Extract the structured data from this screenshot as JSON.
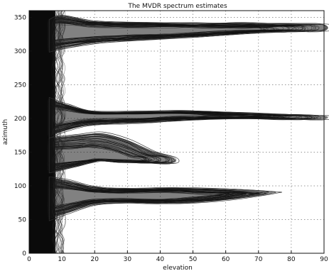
{
  "chart_data": {
    "type": "contour",
    "title": "The MVDR spectrum estimates",
    "xlabel": "elevation",
    "ylabel": "azimuth",
    "xlim": [
      0,
      90
    ],
    "ylim": [
      0,
      360
    ],
    "x_ticks": [
      0,
      10,
      20,
      30,
      40,
      50,
      60,
      70,
      80,
      90
    ],
    "y_ticks": [
      0,
      50,
      100,
      150,
      200,
      250,
      300,
      350
    ],
    "grid": true,
    "grid_style": "dotted",
    "dense_band": {
      "x_range": [
        0,
        8
      ],
      "y_range": [
        0,
        360
      ],
      "color": "#0a0a0a"
    },
    "lobes": [
      {
        "name": "lobe-330",
        "center_azimuth": 330,
        "tip_elevation": 90,
        "upper": [
          [
            6,
            346
          ],
          [
            10,
            352
          ],
          [
            20,
            344
          ],
          [
            35,
            342
          ],
          [
            50,
            341
          ],
          [
            65,
            341
          ],
          [
            80,
            340
          ],
          [
            90,
            339
          ]
        ],
        "lower": [
          [
            90,
            330
          ],
          [
            80,
            330
          ],
          [
            65,
            326
          ],
          [
            50,
            321
          ],
          [
            35,
            317
          ],
          [
            22,
            313
          ],
          [
            12,
            306
          ],
          [
            6,
            300
          ]
        ]
      },
      {
        "name": "lobe-205",
        "center_azimuth": 205,
        "tip_elevation": 90,
        "upper": [
          [
            6,
            230
          ],
          [
            12,
            220
          ],
          [
            20,
            210
          ],
          [
            35,
            210
          ],
          [
            50,
            211
          ],
          [
            65,
            208
          ],
          [
            80,
            205
          ],
          [
            90,
            204
          ]
        ],
        "lower": [
          [
            90,
            199
          ],
          [
            80,
            199
          ],
          [
            65,
            200
          ],
          [
            50,
            198
          ],
          [
            38,
            195
          ],
          [
            28,
            193
          ],
          [
            18,
            190
          ],
          [
            10,
            180
          ],
          [
            6,
            172
          ]
        ]
      },
      {
        "name": "lobe-140",
        "center_azimuth": 140,
        "tip_elevation": 44,
        "upper": [
          [
            6,
            170
          ],
          [
            15,
            175
          ],
          [
            22,
            178
          ],
          [
            30,
            168
          ],
          [
            38,
            150
          ],
          [
            44,
            142
          ]
        ],
        "lower": [
          [
            44,
            134
          ],
          [
            36,
            134
          ],
          [
            28,
            136
          ],
          [
            22,
            138
          ],
          [
            15,
            130
          ],
          [
            6,
            120
          ]
        ]
      },
      {
        "name": "lobe-85",
        "center_azimuth": 85,
        "tip_elevation": 74,
        "upper": [
          [
            6,
            112
          ],
          [
            12,
            108
          ],
          [
            20,
            98
          ],
          [
            30,
            96
          ],
          [
            45,
            97
          ],
          [
            60,
            95
          ],
          [
            74,
            91
          ]
        ],
        "lower": [
          [
            74,
            89
          ],
          [
            62,
            80
          ],
          [
            50,
            75
          ],
          [
            40,
            74
          ],
          [
            30,
            75
          ],
          [
            20,
            72
          ],
          [
            12,
            60
          ],
          [
            6,
            50
          ]
        ]
      }
    ]
  }
}
